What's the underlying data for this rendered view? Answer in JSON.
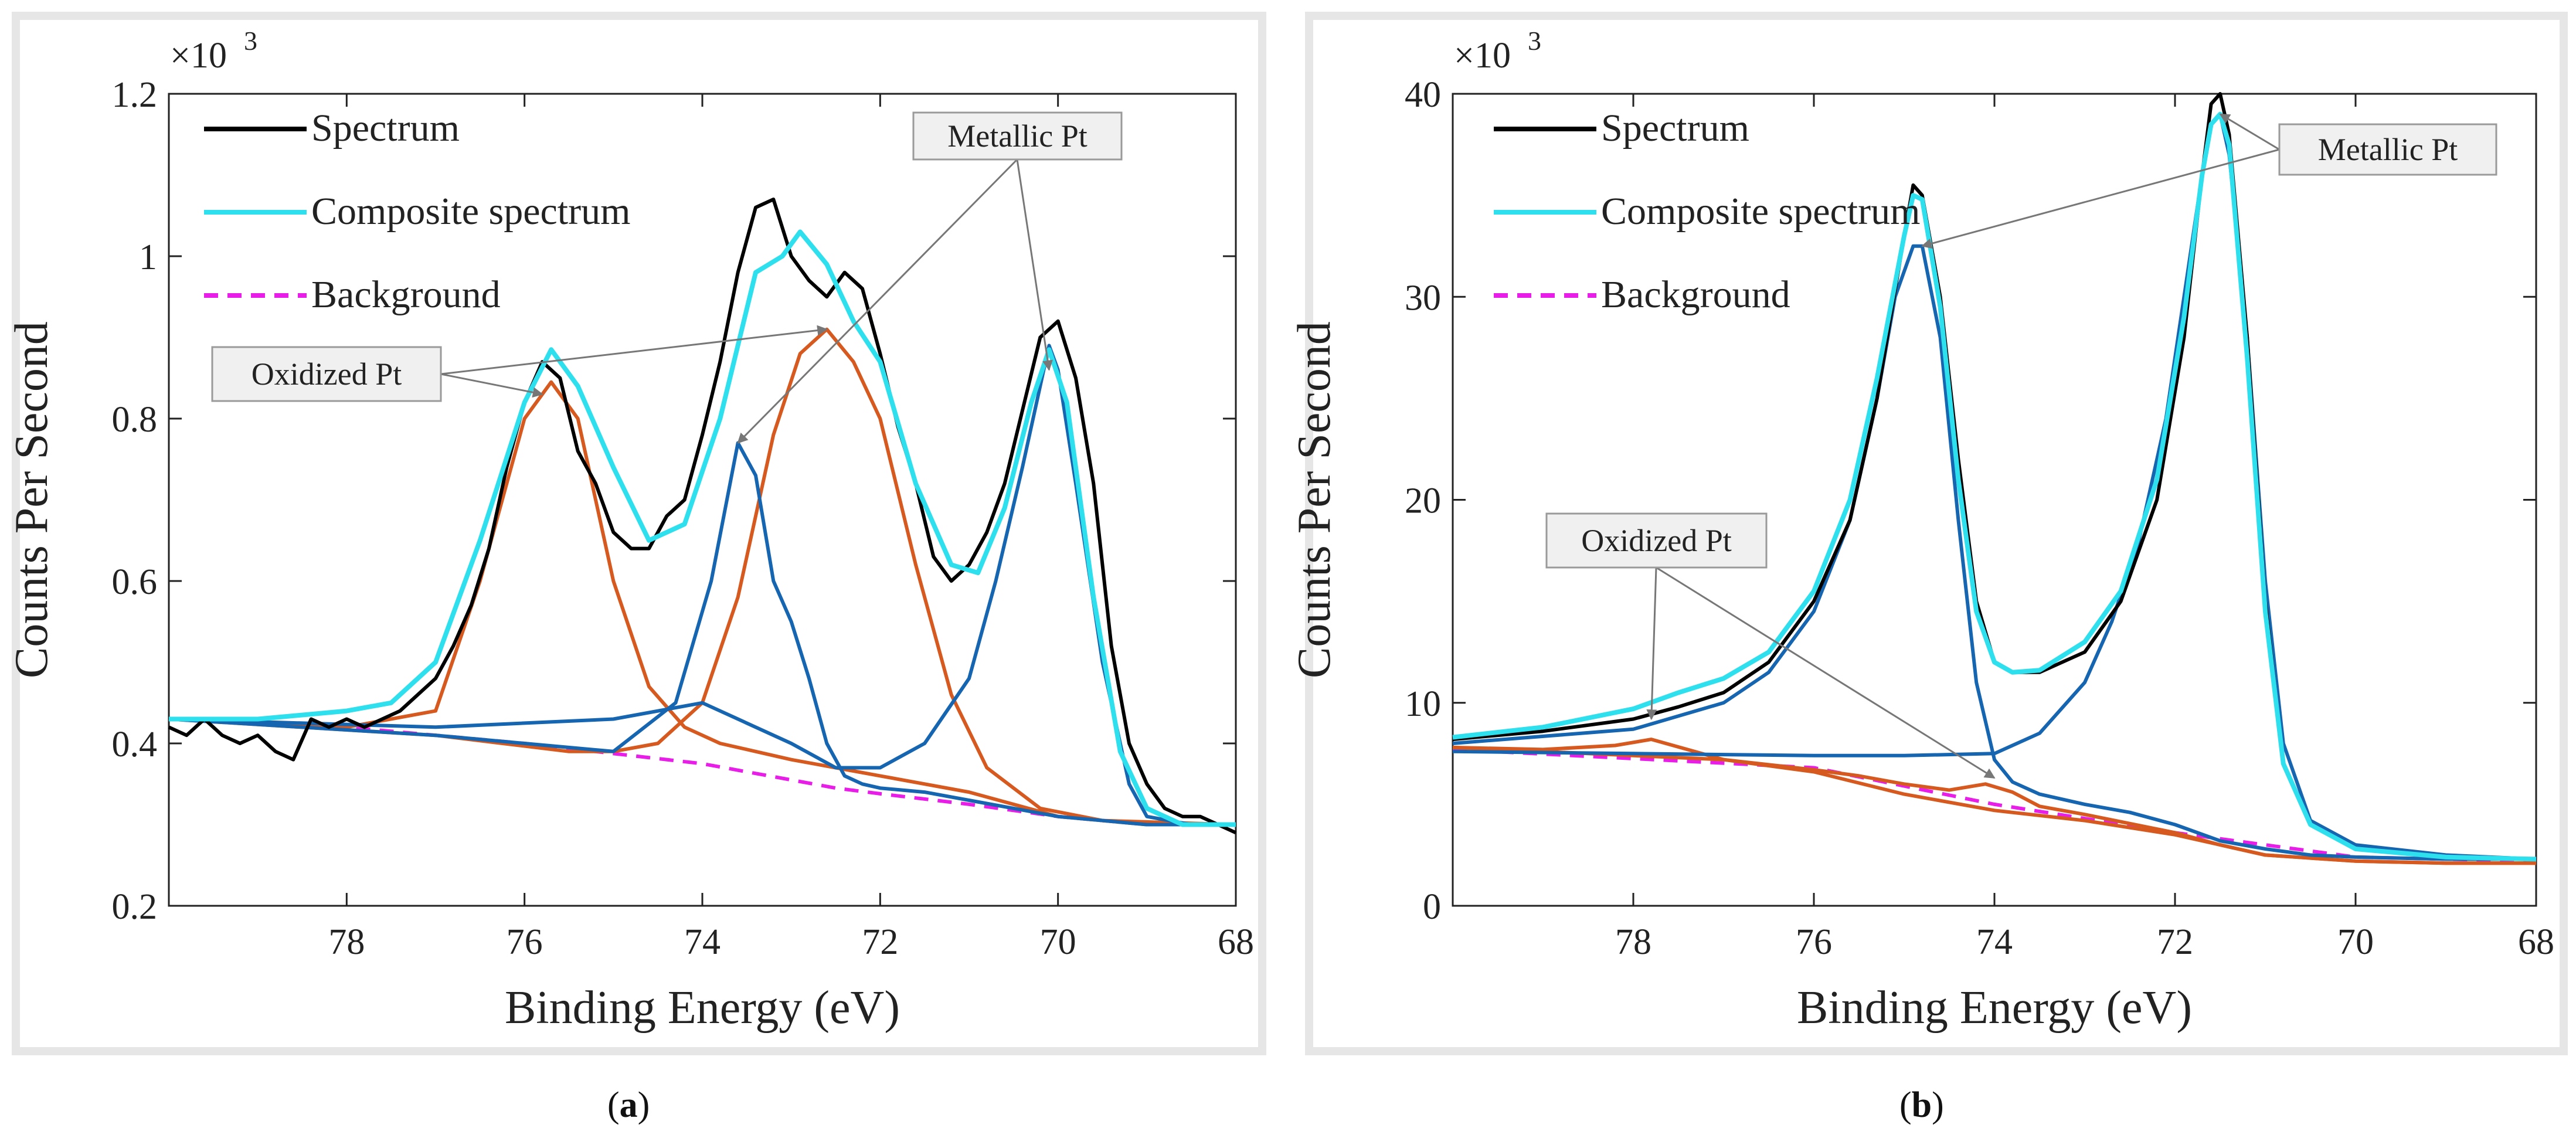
{
  "chart_data": [
    {
      "panel": "a",
      "type": "line",
      "sublabel": "a",
      "ylabel": "Counts Per Second",
      "xlabel": "Binding Energy (eV)",
      "multiplier": "×10",
      "multiplier_exp": "3",
      "xlim": [
        80,
        68
      ],
      "ylim": [
        0.2,
        1.2
      ],
      "xticks": [
        78,
        76,
        74,
        72,
        70,
        68
      ],
      "yticks": [
        0.2,
        0.4,
        0.6,
        0.8,
        1,
        1.2
      ],
      "ytick_labels": [
        "0.2",
        "0.4",
        "0.6",
        "0.8",
        "1",
        "1.2"
      ],
      "legend": [
        "Spectrum",
        "Composite spectrum",
        "Background"
      ],
      "legend_position": "top-left",
      "annotations": [
        {
          "text": "Oxidized Pt",
          "arrows_to": [
            [
              75.8,
              0.83
            ],
            [
              72.6,
              0.91
            ]
          ]
        },
        {
          "text": "Metallic Pt",
          "arrows_to": [
            [
              73.6,
              0.77
            ],
            [
              70.1,
              0.86
            ]
          ]
        }
      ],
      "series": [
        {
          "name": "Spectrum",
          "color": "#000000",
          "x": [
            80,
            79.8,
            79.6,
            79.4,
            79.2,
            79,
            78.8,
            78.6,
            78.4,
            78.2,
            78,
            77.8,
            77.6,
            77.4,
            77.2,
            77,
            76.8,
            76.6,
            76.4,
            76.2,
            76,
            75.8,
            75.6,
            75.4,
            75.2,
            75,
            74.8,
            74.6,
            74.4,
            74.2,
            74,
            73.8,
            73.6,
            73.4,
            73.2,
            73,
            72.8,
            72.6,
            72.4,
            72.2,
            72,
            71.8,
            71.6,
            71.4,
            71.2,
            71,
            70.8,
            70.6,
            70.4,
            70.2,
            70,
            69.8,
            69.6,
            69.4,
            69.2,
            69,
            68.8,
            68.6,
            68.4,
            68.2,
            68
          ],
          "y": [
            0.42,
            0.41,
            0.43,
            0.41,
            0.4,
            0.41,
            0.39,
            0.38,
            0.43,
            0.42,
            0.43,
            0.42,
            0.43,
            0.44,
            0.46,
            0.48,
            0.52,
            0.57,
            0.64,
            0.74,
            0.82,
            0.87,
            0.85,
            0.76,
            0.72,
            0.66,
            0.64,
            0.64,
            0.68,
            0.7,
            0.78,
            0.87,
            0.98,
            1.06,
            1.07,
            1.0,
            0.97,
            0.95,
            0.98,
            0.96,
            0.88,
            0.79,
            0.72,
            0.63,
            0.6,
            0.62,
            0.66,
            0.72,
            0.81,
            0.9,
            0.92,
            0.85,
            0.72,
            0.52,
            0.4,
            0.35,
            0.32,
            0.31,
            0.31,
            0.3,
            0.29
          ]
        },
        {
          "name": "Composite spectrum",
          "color": "#2ee0ee",
          "x": [
            80,
            79,
            78,
            77.5,
            77,
            76.5,
            76,
            75.7,
            75.4,
            75,
            74.6,
            74.2,
            73.8,
            73.4,
            73.1,
            72.9,
            72.6,
            72.3,
            72,
            71.6,
            71.2,
            70.9,
            70.6,
            70.3,
            70.1,
            69.9,
            69.6,
            69.3,
            69,
            68.6,
            68
          ],
          "y": [
            0.43,
            0.43,
            0.44,
            0.45,
            0.5,
            0.65,
            0.82,
            0.885,
            0.84,
            0.74,
            0.65,
            0.67,
            0.8,
            0.98,
            1.0,
            1.03,
            0.99,
            0.92,
            0.87,
            0.72,
            0.62,
            0.61,
            0.69,
            0.82,
            0.885,
            0.82,
            0.58,
            0.39,
            0.32,
            0.3,
            0.3
          ]
        },
        {
          "name": "Background",
          "color": "#e81ee8",
          "dashed": true,
          "x": [
            80,
            78,
            76,
            74.8,
            74,
            73.5,
            73,
            72.5,
            72,
            71,
            70,
            69,
            68
          ],
          "y": [
            0.43,
            0.42,
            0.4,
            0.385,
            0.375,
            0.365,
            0.355,
            0.345,
            0.338,
            0.325,
            0.31,
            0.3,
            0.3
          ]
        },
        {
          "name": "Oxidized Pt 1",
          "color": "#d65a1f",
          "x": [
            80,
            78,
            77,
            76.5,
            76,
            75.7,
            75.4,
            75,
            74.6,
            74.2,
            73.8,
            73.4,
            73,
            72.5,
            72,
            71,
            70,
            69,
            68
          ],
          "y": [
            0.43,
            0.42,
            0.44,
            0.6,
            0.8,
            0.845,
            0.8,
            0.6,
            0.47,
            0.42,
            0.4,
            0.39,
            0.38,
            0.37,
            0.36,
            0.34,
            0.31,
            0.3,
            0.3
          ]
        },
        {
          "name": "Oxidized Pt 2",
          "color": "#d65a1f",
          "x": [
            80,
            77,
            75.5,
            75,
            74.5,
            74,
            73.6,
            73.2,
            72.9,
            72.6,
            72.3,
            72,
            71.6,
            71.2,
            70.8,
            70.2,
            69.5,
            68
          ],
          "y": [
            0.43,
            0.41,
            0.39,
            0.39,
            0.4,
            0.45,
            0.58,
            0.78,
            0.88,
            0.91,
            0.87,
            0.8,
            0.62,
            0.46,
            0.37,
            0.32,
            0.305,
            0.3
          ]
        },
        {
          "name": "Metallic Pt 1",
          "color": "#1665b0",
          "x": [
            80,
            77,
            75,
            74.3,
            73.9,
            73.6,
            73.4,
            73.2,
            73,
            72.8,
            72.6,
            72.4,
            72.2,
            72,
            71.5,
            71,
            70,
            69,
            68
          ],
          "y": [
            0.43,
            0.41,
            0.39,
            0.45,
            0.6,
            0.77,
            0.73,
            0.6,
            0.55,
            0.48,
            0.4,
            0.36,
            0.35,
            0.345,
            0.34,
            0.33,
            0.31,
            0.3,
            0.3
          ]
        },
        {
          "name": "Metallic Pt 2",
          "color": "#1665b0",
          "x": [
            80,
            77,
            75,
            74,
            73,
            72.5,
            72,
            71.5,
            71,
            70.7,
            70.4,
            70.2,
            70.1,
            70,
            69.8,
            69.5,
            69.2,
            69,
            68.5,
            68
          ],
          "y": [
            0.43,
            0.42,
            0.43,
            0.45,
            0.4,
            0.37,
            0.37,
            0.4,
            0.48,
            0.6,
            0.74,
            0.84,
            0.89,
            0.86,
            0.72,
            0.5,
            0.35,
            0.31,
            0.3,
            0.3
          ]
        }
      ]
    },
    {
      "panel": "b",
      "type": "line",
      "sublabel": "b",
      "ylabel": "Counts Per Second",
      "xlabel": "Binding Energy (eV)",
      "multiplier": "×10",
      "multiplier_exp": "3",
      "xlim": [
        80,
        68
      ],
      "ylim": [
        0,
        40
      ],
      "xticks": [
        78,
        76,
        74,
        72,
        70,
        68
      ],
      "yticks": [
        0,
        10,
        20,
        30,
        40
      ],
      "ytick_labels": [
        "0",
        "10",
        "20",
        "30",
        "40"
      ],
      "legend": [
        "Spectrum",
        "Composite spectrum",
        "Background"
      ],
      "legend_position": "top-left",
      "annotations": [
        {
          "text": "Metallic Pt",
          "arrows_to": [
            [
              74.8,
              32.5
            ],
            [
              71.5,
              39
            ]
          ]
        },
        {
          "text": "Oxidized Pt",
          "arrows_to": [
            [
              77.8,
              9.2
            ],
            [
              74.0,
              6.3
            ]
          ]
        }
      ],
      "series": [
        {
          "name": "Spectrum",
          "color": "#000000",
          "x": [
            80,
            79,
            78,
            77.5,
            77,
            76.5,
            76,
            75.6,
            75.3,
            75,
            74.9,
            74.8,
            74.6,
            74.4,
            74.2,
            74,
            73.8,
            73.5,
            73,
            72.6,
            72.2,
            71.9,
            71.7,
            71.6,
            71.5,
            71.4,
            71.2,
            71,
            70.8,
            70.5,
            70,
            69,
            68
          ],
          "y": [
            8.2,
            8.6,
            9.2,
            9.8,
            10.5,
            12,
            15,
            19,
            25,
            33,
            35.5,
            35,
            30,
            22,
            15,
            12,
            11.5,
            11.5,
            12.5,
            15,
            20,
            28,
            36,
            39.5,
            40,
            38,
            28,
            15,
            7,
            4,
            2.8,
            2.4,
            2.3
          ]
        },
        {
          "name": "Composite spectrum",
          "color": "#2ee0ee",
          "x": [
            80,
            79,
            78,
            77.5,
            77,
            76.5,
            76,
            75.6,
            75.3,
            75,
            74.9,
            74.8,
            74.6,
            74.4,
            74.2,
            74,
            73.8,
            73.5,
            73,
            72.6,
            72.2,
            71.9,
            71.7,
            71.6,
            71.5,
            71.4,
            71.2,
            71,
            70.8,
            70.5,
            70,
            69,
            68
          ],
          "y": [
            8.3,
            8.8,
            9.7,
            10.5,
            11.2,
            12.5,
            15.5,
            20,
            26,
            33,
            35,
            34.8,
            29.5,
            21,
            14.5,
            12,
            11.5,
            11.6,
            13,
            15.5,
            21,
            29,
            36,
            38.5,
            39,
            37.5,
            27,
            14.5,
            7,
            4,
            2.8,
            2.4,
            2.3
          ]
        },
        {
          "name": "Background",
          "color": "#e81ee8",
          "dashed": true,
          "x": [
            80,
            76,
            74,
            72,
            70,
            68
          ],
          "y": [
            7.7,
            6.8,
            5.0,
            3.6,
            2.4,
            2.2
          ]
        },
        {
          "name": "Oxidized Pt 1",
          "color": "#d65a1f",
          "x": [
            80,
            79,
            78.2,
            77.8,
            77.4,
            77,
            76,
            75,
            74,
            73,
            72,
            71.5,
            71,
            70,
            69,
            68
          ],
          "y": [
            7.8,
            7.7,
            7.9,
            8.2,
            7.7,
            7.2,
            6.6,
            5.5,
            4.7,
            4.2,
            3.5,
            3.0,
            2.5,
            2.2,
            2.1,
            2.1
          ]
        },
        {
          "name": "Oxidized Pt 2",
          "color": "#d65a1f",
          "x": [
            80,
            78,
            77,
            76,
            75.5,
            75,
            74.5,
            74.1,
            73.8,
            73.5,
            73,
            72,
            71.5,
            71,
            70,
            69,
            68
          ],
          "y": [
            7.8,
            7.4,
            7.2,
            6.7,
            6.4,
            6.0,
            5.7,
            6.0,
            5.6,
            4.9,
            4.5,
            3.6,
            3.0,
            2.5,
            2.2,
            2.1,
            2.1
          ]
        },
        {
          "name": "Metallic Pt 1",
          "color": "#1665b0",
          "x": [
            80,
            78,
            77,
            76.5,
            76,
            75.6,
            75.3,
            75.1,
            74.9,
            74.8,
            74.6,
            74.4,
            74.2,
            74,
            73.8,
            73.5,
            73,
            72.5,
            72,
            71.5,
            71,
            70.5,
            70,
            69,
            68
          ],
          "y": [
            8.0,
            8.7,
            10,
            11.5,
            14.5,
            19,
            25,
            30,
            32.5,
            32.5,
            28,
            19,
            11,
            7.2,
            6.1,
            5.5,
            5.0,
            4.6,
            4.0,
            3.2,
            2.8,
            2.5,
            2.4,
            2.3,
            2.3
          ]
        },
        {
          "name": "Metallic Pt 2",
          "color": "#1665b0",
          "x": [
            80,
            78,
            76,
            75,
            74,
            73.5,
            73,
            72.7,
            72.4,
            72.1,
            71.9,
            71.7,
            71.6,
            71.5,
            71.4,
            71.2,
            71,
            70.8,
            70.5,
            70,
            69,
            68
          ],
          "y": [
            7.6,
            7.5,
            7.4,
            7.4,
            7.5,
            8.5,
            11,
            14,
            18,
            24,
            30,
            36,
            38.5,
            39,
            37,
            28,
            16,
            8,
            4.2,
            3,
            2.5,
            2.3
          ]
        }
      ]
    }
  ]
}
